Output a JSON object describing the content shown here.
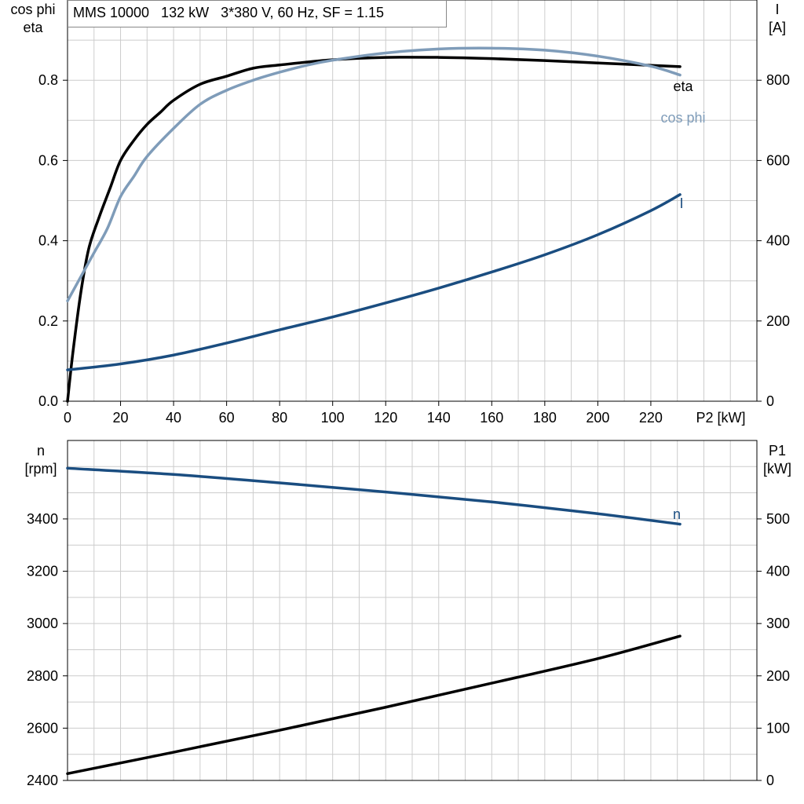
{
  "chart_data": [
    {
      "type": "line",
      "title": "MMS 10000   132 kW   3*380 V, 60 Hz, SF = 1.15",
      "xlabel": "P2 [kW]",
      "ylabel_left": [
        "cos phi",
        "eta"
      ],
      "ylabel_right": [
        "I",
        "[A]"
      ],
      "xlim": [
        0,
        260
      ],
      "ylim_left": [
        0,
        1.0
      ],
      "ylim_right": [
        0,
        1000
      ],
      "x_ticks": [
        "0",
        "20",
        "40",
        "60",
        "80",
        "100",
        "120",
        "140",
        "160",
        "180",
        "200",
        "220"
      ],
      "y_left_ticks": [
        "0.0",
        "0.2",
        "0.4",
        "0.6",
        "0.8"
      ],
      "y_right_ticks": [
        "0",
        "200",
        "400",
        "600",
        "800"
      ],
      "grid": true,
      "series": [
        {
          "name": "eta",
          "axis": "left",
          "color": "#000000",
          "x": [
            0,
            2,
            5,
            8,
            12,
            16,
            20,
            25,
            30,
            35,
            40,
            50,
            60,
            70,
            80,
            100,
            120,
            140,
            160,
            180,
            200,
            220,
            231
          ],
          "y": [
            0.0,
            0.12,
            0.27,
            0.38,
            0.46,
            0.53,
            0.6,
            0.65,
            0.69,
            0.72,
            0.75,
            0.79,
            0.81,
            0.83,
            0.838,
            0.851,
            0.857,
            0.857,
            0.854,
            0.849,
            0.843,
            0.837,
            0.834
          ]
        },
        {
          "name": "cos phi",
          "axis": "left",
          "color": "#7f9cb9",
          "x": [
            0,
            5,
            10,
            15,
            20,
            25,
            30,
            40,
            50,
            60,
            70,
            80,
            90,
            100,
            120,
            140,
            160,
            180,
            200,
            220,
            231
          ],
          "y": [
            0.25,
            0.31,
            0.37,
            0.43,
            0.51,
            0.56,
            0.61,
            0.68,
            0.74,
            0.775,
            0.8,
            0.82,
            0.837,
            0.85,
            0.868,
            0.878,
            0.88,
            0.875,
            0.86,
            0.835,
            0.813
          ]
        },
        {
          "name": "I",
          "axis": "right",
          "color": "#1a4d80",
          "x": [
            0,
            20,
            40,
            60,
            80,
            100,
            120,
            140,
            160,
            180,
            200,
            220,
            231
          ],
          "y": [
            78,
            93,
            115,
            145,
            178,
            210,
            245,
            282,
            322,
            365,
            415,
            475,
            515
          ]
        }
      ]
    },
    {
      "type": "line",
      "xlabel": "",
      "ylabel_left": [
        "n",
        "[rpm]"
      ],
      "ylabel_right": [
        "P1",
        "[kW]"
      ],
      "xlim": [
        0,
        260
      ],
      "ylim_left": [
        2400,
        3700
      ],
      "ylim_right": [
        0,
        650
      ],
      "y_left_ticks": [
        "2400",
        "2600",
        "2800",
        "3000",
        "3200",
        "3400"
      ],
      "y_right_ticks": [
        "0",
        "100",
        "200",
        "300",
        "400",
        "500"
      ],
      "grid": true,
      "series": [
        {
          "name": "n",
          "axis": "left",
          "color": "#1a4d80",
          "x": [
            0,
            40,
            80,
            120,
            160,
            200,
            231
          ],
          "y": [
            3594,
            3570,
            3538,
            3503,
            3465,
            3420,
            3380
          ]
        },
        {
          "name": "",
          "axis": "right",
          "color": "#000000",
          "x": [
            0,
            40,
            80,
            120,
            160,
            200,
            231
          ],
          "y": [
            13,
            54,
            96,
            140,
            186,
            233,
            276
          ]
        }
      ]
    }
  ]
}
